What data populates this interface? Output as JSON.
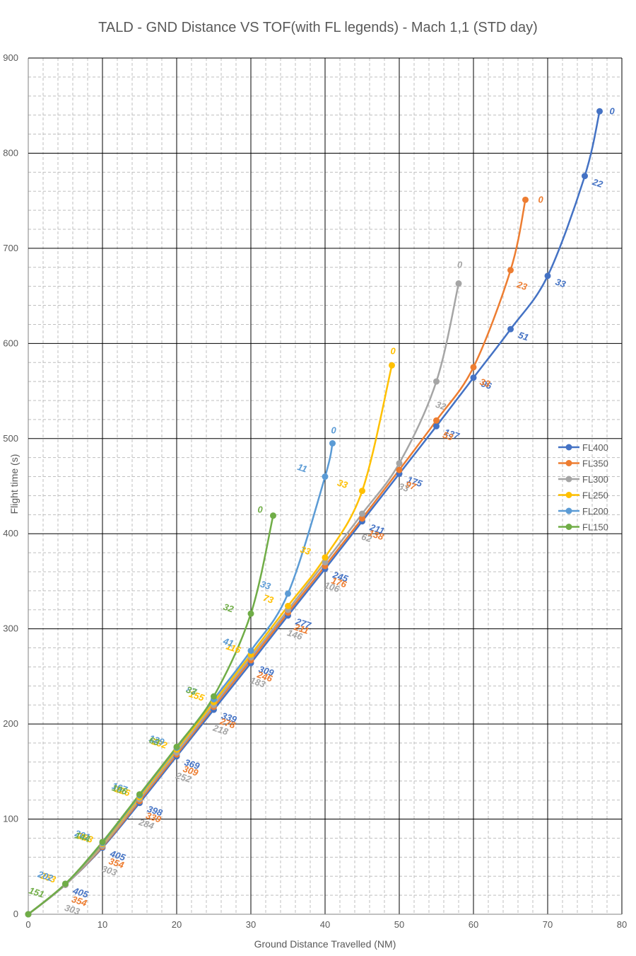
{
  "chart_data": {
    "type": "line",
    "title": "TALD - GND Distance VS TOF(with FL legends) - Mach 1,1 (STD day)",
    "xlabel": "Ground Distance Travelled (NM)",
    "ylabel": "Flight time (s)",
    "xlim": [
      0,
      80
    ],
    "ylim": [
      0,
      900
    ],
    "x_ticks": [
      "0",
      "10",
      "20",
      "30",
      "40",
      "50",
      "60",
      "70",
      "80"
    ],
    "y_ticks": [
      "0",
      "100",
      "200",
      "300",
      "400",
      "500",
      "600",
      "700",
      "800",
      "900"
    ],
    "x_major_step": 10,
    "x_minor_step": 2,
    "y_major_step": 100,
    "y_minor_step": 20,
    "grid": true,
    "legend_position": "right",
    "series": [
      {
        "name": "FL400",
        "color": "#4472C4",
        "points": [
          [
            0,
            0
          ],
          [
            5,
            31
          ],
          [
            10,
            70
          ],
          [
            15,
            117
          ],
          [
            20,
            166
          ],
          [
            25,
            215
          ],
          [
            30,
            264
          ],
          [
            35,
            314
          ],
          [
            40,
            363
          ],
          [
            45,
            413
          ],
          [
            50,
            463
          ],
          [
            55,
            513
          ],
          [
            60,
            564
          ],
          [
            65,
            615
          ],
          [
            70,
            671
          ],
          [
            75,
            776
          ],
          [
            77,
            844
          ]
        ],
        "labels": [
          "",
          "405",
          "405",
          "398",
          "369",
          "339",
          "309",
          "277",
          "245",
          "211",
          "175",
          "137",
          "96",
          "51",
          "33",
          "22",
          "0"
        ]
      },
      {
        "name": "FL350",
        "color": "#ED7D31",
        "points": [
          [
            0,
            0
          ],
          [
            5,
            31
          ],
          [
            10,
            71
          ],
          [
            15,
            119
          ],
          [
            20,
            168
          ],
          [
            25,
            218
          ],
          [
            30,
            267
          ],
          [
            35,
            317
          ],
          [
            40,
            366
          ],
          [
            45,
            416
          ],
          [
            50,
            467
          ],
          [
            55,
            519
          ],
          [
            60,
            575
          ],
          [
            65,
            677
          ],
          [
            67,
            751
          ]
        ],
        "labels": [
          "",
          "354",
          "354",
          "339",
          "309",
          "278",
          "246",
          "211",
          "176",
          "138",
          "97",
          "53",
          "33",
          "23",
          "0"
        ]
      },
      {
        "name": "FL300",
        "color": "#A5A5A5",
        "points": [
          [
            0,
            0
          ],
          [
            5,
            31
          ],
          [
            10,
            72
          ],
          [
            15,
            121
          ],
          [
            20,
            170
          ],
          [
            25,
            220
          ],
          [
            30,
            270
          ],
          [
            35,
            320
          ],
          [
            40,
            370
          ],
          [
            45,
            421
          ],
          [
            50,
            474
          ],
          [
            55,
            560
          ],
          [
            58,
            663
          ]
        ],
        "labels": [
          "",
          "303",
          "303",
          "284",
          "252",
          "218",
          "183",
          "146",
          "106",
          "62",
          "33",
          "32",
          "0"
        ]
      },
      {
        "name": "FL250",
        "color": "#FFC000",
        "points": [
          [
            0,
            0
          ],
          [
            5,
            32
          ],
          [
            10,
            74
          ],
          [
            15,
            123
          ],
          [
            20,
            173
          ],
          [
            25,
            223
          ],
          [
            30,
            273
          ],
          [
            35,
            324
          ],
          [
            40,
            375
          ],
          [
            45,
            445
          ],
          [
            49,
            577
          ]
        ],
        "labels": [
          "",
          "253",
          "253",
          "226",
          "192",
          "155",
          "116",
          "73",
          "33",
          "33",
          "0"
        ]
      },
      {
        "name": "FL200",
        "color": "#5B9BD5",
        "points": [
          [
            0,
            0
          ],
          [
            5,
            32
          ],
          [
            10,
            75
          ],
          [
            15,
            125
          ],
          [
            20,
            175
          ],
          [
            25,
            226
          ],
          [
            30,
            277
          ],
          [
            35,
            337
          ],
          [
            40,
            460
          ],
          [
            41,
            495
          ]
        ],
        "labels": [
          "",
          "202",
          "201",
          "167",
          "129",
          "87",
          "41",
          "33",
          "11",
          "0"
        ]
      },
      {
        "name": "FL150",
        "color": "#70AD47",
        "points": [
          [
            0,
            0
          ],
          [
            5,
            32
          ],
          [
            10,
            76
          ],
          [
            15,
            126
          ],
          [
            20,
            176
          ],
          [
            25,
            229
          ],
          [
            30,
            316
          ],
          [
            33,
            419
          ]
        ],
        "labels": [
          "151",
          "",
          "144",
          "106",
          "63",
          "33",
          "32",
          "0"
        ]
      }
    ]
  }
}
